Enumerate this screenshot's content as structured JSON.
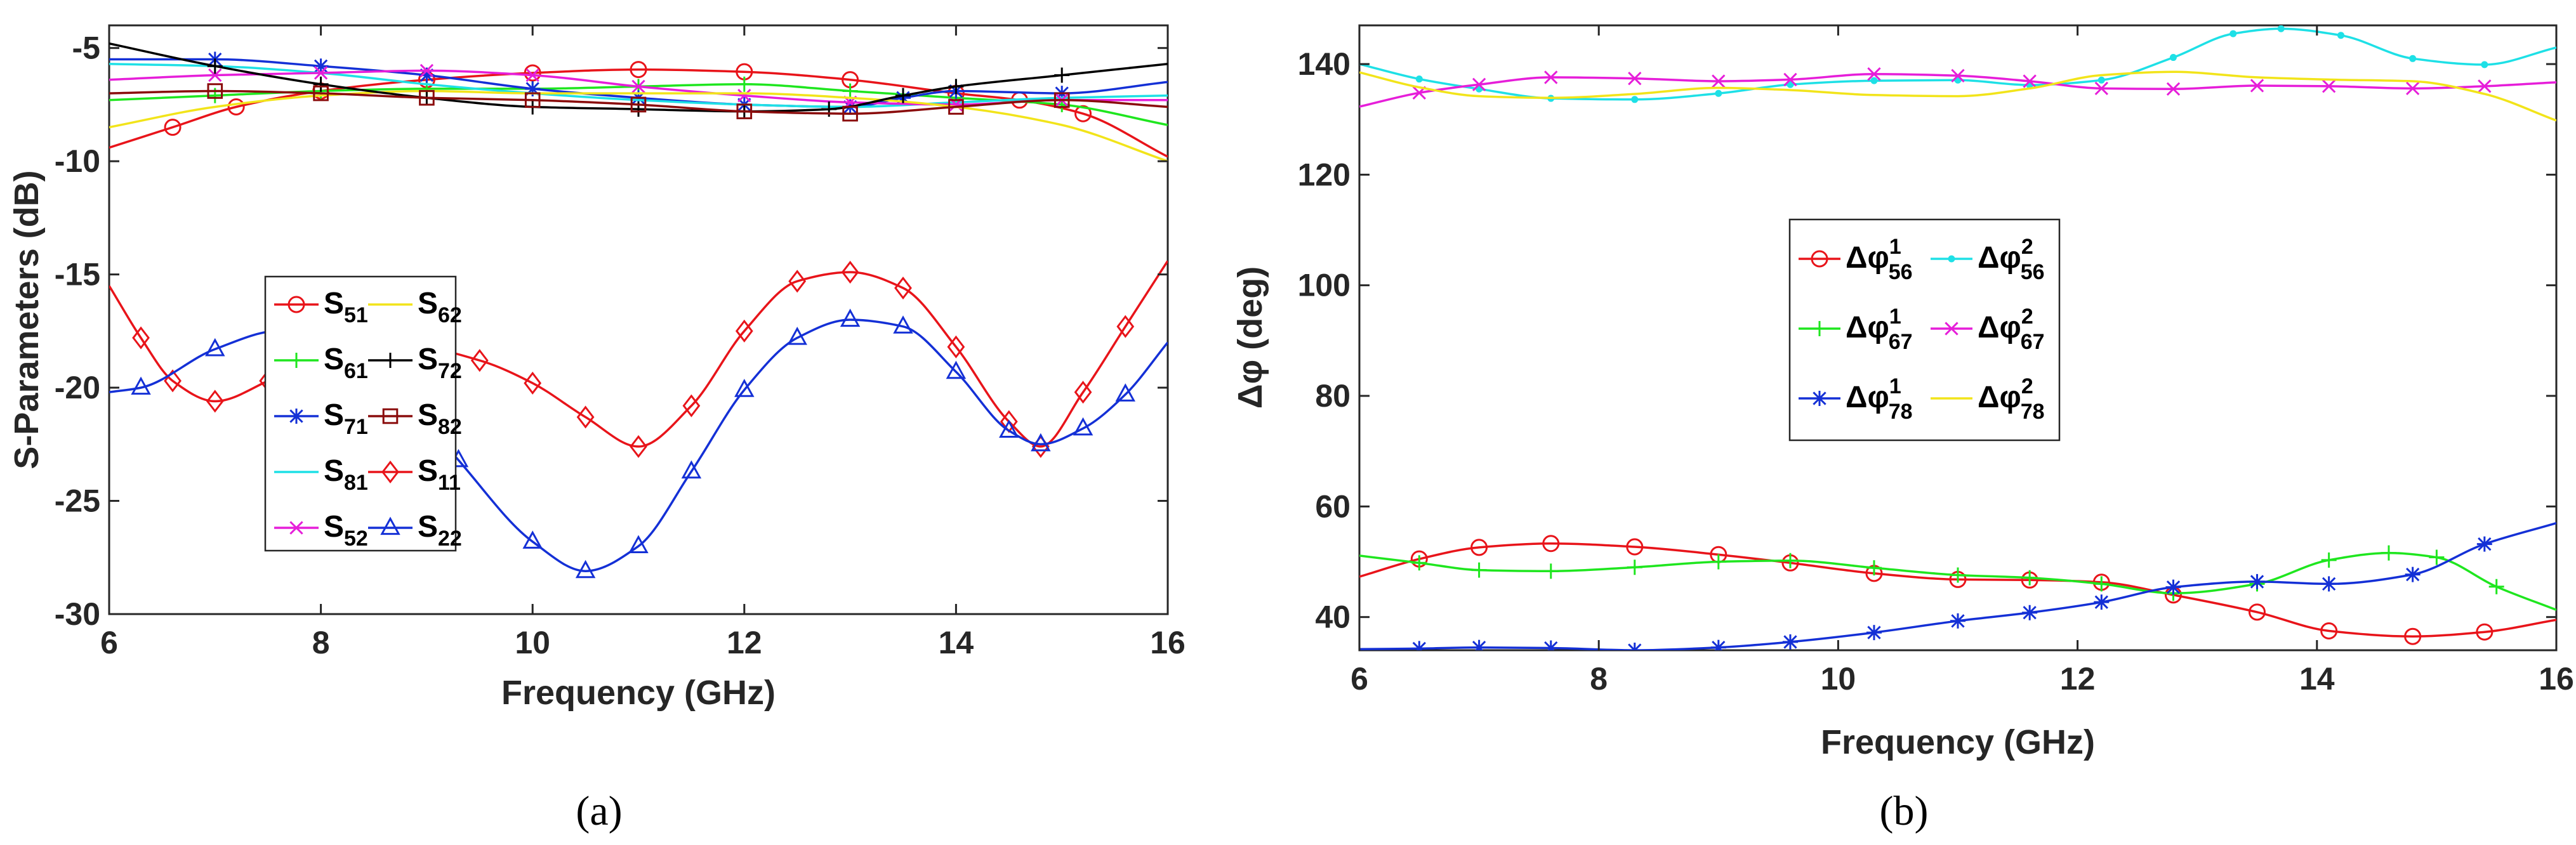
{
  "chart_data": [
    {
      "type": "line",
      "panel": "a",
      "caption": "(a)",
      "xlabel": "Frequency (GHz)",
      "ylabel": "S-Parameters (dB)",
      "xlim": [
        6,
        16
      ],
      "ylim": [
        -30,
        -4
      ],
      "xticks": [
        6,
        8,
        10,
        12,
        14,
        16
      ],
      "yticks": [
        -30,
        -25,
        -20,
        -15,
        -10,
        -5
      ],
      "xtick_labels": [
        "6",
        "8",
        "10",
        "12",
        "14",
        "16"
      ],
      "ytick_labels": [
        "-30",
        "-25",
        "-20",
        "-15",
        "-10",
        "-5"
      ],
      "legend": {
        "position": "center-left",
        "columns": 2
      },
      "series": [
        {
          "name": "S51",
          "base": "S",
          "sub": "51",
          "color": "#e8141a",
          "marker": "circle",
          "x": [
            6,
            6.6,
            7.2,
            8,
            9,
            10,
            11,
            12,
            13,
            14,
            14.6,
            15.2,
            16
          ],
          "y": [
            -9.4,
            -8.5,
            -7.6,
            -6.9,
            -6.4,
            -6.1,
            -5.95,
            -6.05,
            -6.4,
            -7.0,
            -7.3,
            -7.9,
            -9.8
          ]
        },
        {
          "name": "S61",
          "base": "S",
          "sub": "61",
          "color": "#1fe61f",
          "marker": "plus",
          "x": [
            6,
            7,
            8,
            9,
            10,
            11,
            12,
            13,
            14,
            15,
            16
          ],
          "y": [
            -7.3,
            -7.1,
            -6.9,
            -6.8,
            -6.8,
            -6.7,
            -6.6,
            -6.9,
            -7.2,
            -7.5,
            -8.4
          ]
        },
        {
          "name": "S71",
          "base": "S",
          "sub": "71",
          "color": "#1430d6",
          "marker": "asterisk",
          "x": [
            6,
            7,
            8,
            9,
            10,
            11,
            12,
            13,
            13.5,
            14,
            15,
            16
          ],
          "y": [
            -5.5,
            -5.5,
            -5.8,
            -6.2,
            -6.8,
            -7.2,
            -7.5,
            -7.6,
            -7.2,
            -6.9,
            -7.0,
            -6.5
          ]
        },
        {
          "name": "S81",
          "base": "S",
          "sub": "81",
          "color": "#1ee0e6",
          "marker": "none",
          "x": [
            6,
            7,
            8,
            9,
            10,
            11,
            12,
            13,
            14,
            15,
            16
          ],
          "y": [
            -5.7,
            -5.8,
            -6.1,
            -6.6,
            -7.0,
            -7.3,
            -7.5,
            -7.6,
            -7.4,
            -7.2,
            -7.1
          ]
        },
        {
          "name": "S52",
          "base": "S",
          "sub": "52",
          "color": "#e61ed9",
          "marker": "x",
          "x": [
            6,
            7,
            8,
            9,
            10,
            11,
            12,
            13,
            14,
            15,
            16
          ],
          "y": [
            -6.4,
            -6.2,
            -6.1,
            -6.0,
            -6.2,
            -6.7,
            -7.1,
            -7.4,
            -7.5,
            -7.3,
            -7.3
          ]
        },
        {
          "name": "S62",
          "base": "S",
          "sub": "62",
          "color": "#f2e41a",
          "marker": "none",
          "x": [
            6,
            7,
            8,
            9,
            10,
            11,
            12,
            13,
            14,
            15,
            16
          ],
          "y": [
            -8.5,
            -7.6,
            -7.1,
            -6.9,
            -7.0,
            -7.0,
            -7.0,
            -7.2,
            -7.6,
            -8.4,
            -10.0
          ]
        },
        {
          "name": "S72",
          "base": "S",
          "sub": "72",
          "color": "#000000",
          "marker": "plus",
          "x": [
            6,
            7,
            8,
            9,
            10,
            11,
            12,
            12.8,
            13.5,
            14,
            15,
            16
          ],
          "y": [
            -4.8,
            -5.8,
            -6.6,
            -7.2,
            -7.6,
            -7.7,
            -7.8,
            -7.7,
            -7.1,
            -6.7,
            -6.2,
            -5.7
          ]
        },
        {
          "name": "S82",
          "base": "S",
          "sub": "82",
          "color": "#8a0c0c",
          "marker": "square",
          "x": [
            6,
            7,
            8,
            9,
            10,
            11,
            12,
            13,
            14,
            15,
            16
          ],
          "y": [
            -7.0,
            -6.9,
            -7.0,
            -7.2,
            -7.3,
            -7.5,
            -7.8,
            -7.9,
            -7.6,
            -7.3,
            -7.6
          ]
        },
        {
          "name": "S11",
          "base": "S",
          "sub": "11",
          "color": "#e8141a",
          "marker": "diamond",
          "x": [
            6,
            6.3,
            6.6,
            7,
            7.5,
            8,
            9,
            9.5,
            10,
            10.5,
            11,
            11.5,
            12,
            12.5,
            13,
            13.5,
            14,
            14.5,
            14.8,
            15.2,
            15.6,
            16
          ],
          "y": [
            -15.5,
            -17.8,
            -19.7,
            -20.6,
            -19.7,
            -18.4,
            -18.3,
            -18.8,
            -19.8,
            -21.3,
            -22.6,
            -20.8,
            -17.5,
            -15.3,
            -14.9,
            -15.6,
            -18.2,
            -21.5,
            -22.6,
            -20.2,
            -17.3,
            -14.4
          ]
        },
        {
          "name": "S22",
          "base": "S",
          "sub": "22",
          "color": "#1430d6",
          "marker": "triangle",
          "x": [
            6,
            6.3,
            7,
            7.6,
            8,
            8.6,
            9.3,
            10,
            10.5,
            11,
            11.5,
            12,
            12.5,
            13,
            13.5,
            14,
            14.5,
            14.8,
            15.2,
            15.6,
            16
          ],
          "y": [
            -20.2,
            -20.0,
            -18.3,
            -17.5,
            -17.6,
            -19.3,
            -23.2,
            -26.8,
            -28.1,
            -27.0,
            -23.7,
            -20.1,
            -17.8,
            -17.0,
            -17.3,
            -19.3,
            -21.9,
            -22.5,
            -21.8,
            -20.3,
            -18.0
          ]
        }
      ]
    },
    {
      "type": "line",
      "panel": "b",
      "caption": "(b)",
      "xlabel": "Frequency (GHz)",
      "ylabel": "Δφ (deg)",
      "xlim": [
        6,
        16
      ],
      "ylim": [
        34,
        147
      ],
      "xticks": [
        6,
        8,
        10,
        12,
        14,
        16
      ],
      "yticks": [
        40,
        60,
        80,
        100,
        120,
        140
      ],
      "xtick_labels": [
        "6",
        "8",
        "10",
        "12",
        "14",
        "16"
      ],
      "ytick_labels": [
        "40",
        "60",
        "80",
        "100",
        "120",
        "140"
      ],
      "legend": {
        "position": "center",
        "columns": 2
      },
      "series": [
        {
          "name": "Δφ¹56",
          "base": "Δφ",
          "sup": "1",
          "sub": "56",
          "color": "#e8141a",
          "marker": "circle",
          "x": [
            6,
            6.5,
            7,
            7.6,
            8.3,
            9,
            9.6,
            10.3,
            11,
            11.6,
            12.2,
            12.8,
            13.5,
            14.1,
            14.8,
            15.4,
            16
          ],
          "y": [
            47.3,
            50.5,
            52.6,
            53.3,
            52.7,
            51.3,
            49.8,
            47.9,
            46.8,
            46.7,
            46.3,
            44.0,
            40.9,
            37.5,
            36.5,
            37.3,
            39.5
          ]
        },
        {
          "name": "Δφ²56",
          "base": "Δφ",
          "sup": "2",
          "sub": "56",
          "color": "#1ee0e6",
          "marker": "dot",
          "x": [
            6,
            6.5,
            7,
            7.6,
            8.3,
            9,
            9.6,
            10.3,
            11,
            11.6,
            12.2,
            12.8,
            13.3,
            13.7,
            14.2,
            14.8,
            15.4,
            16
          ],
          "y": [
            140.0,
            137.3,
            135.5,
            133.8,
            133.6,
            134.7,
            136.3,
            137.0,
            137.1,
            136.2,
            137.1,
            141.2,
            145.5,
            146.4,
            145.2,
            141.0,
            139.9,
            143.0
          ]
        },
        {
          "name": "Δφ¹67",
          "base": "Δφ",
          "sup": "1",
          "sub": "67",
          "color": "#1fe61f",
          "marker": "plus",
          "x": [
            6,
            6.5,
            7,
            7.6,
            8.3,
            9,
            9.6,
            10.3,
            11,
            11.6,
            12.2,
            12.8,
            13.5,
            14.1,
            14.6,
            15,
            15.5,
            16
          ],
          "y": [
            51.1,
            49.8,
            48.5,
            48.3,
            49.0,
            50.0,
            50.2,
            48.9,
            47.6,
            47.1,
            46.0,
            44.3,
            46.0,
            50.3,
            51.6,
            50.8,
            45.5,
            41.3
          ]
        },
        {
          "name": "Δφ²67",
          "base": "Δφ",
          "sup": "2",
          "sub": "67",
          "color": "#e61ed9",
          "marker": "x",
          "x": [
            6,
            6.5,
            7,
            7.6,
            8.3,
            9,
            9.6,
            10.3,
            11,
            11.6,
            12.2,
            12.8,
            13.5,
            14.1,
            14.8,
            15.4,
            16
          ],
          "y": [
            132.3,
            134.8,
            136.3,
            137.6,
            137.4,
            136.9,
            137.2,
            138.2,
            137.9,
            136.9,
            135.6,
            135.5,
            136.1,
            136.0,
            135.6,
            136.0,
            136.7
          ]
        },
        {
          "name": "Δφ¹78",
          "base": "Δφ",
          "sup": "1",
          "sub": "78",
          "color": "#1430d6",
          "marker": "asterisk",
          "x": [
            6,
            6.5,
            7,
            7.6,
            8.3,
            9,
            9.6,
            10.3,
            11,
            11.6,
            12.2,
            12.8,
            13.5,
            14.1,
            14.8,
            15.4,
            16
          ],
          "y": [
            34.2,
            34.3,
            34.5,
            34.4,
            34.0,
            34.5,
            35.5,
            37.2,
            39.3,
            40.8,
            42.7,
            45.4,
            46.4,
            46.0,
            47.7,
            53.2,
            57.0
          ]
        },
        {
          "name": "Δφ²78",
          "base": "Δφ",
          "sup": "2",
          "sub": "78",
          "color": "#f2e41a",
          "marker": "none",
          "x": [
            6,
            6.5,
            7,
            7.6,
            8.3,
            9,
            9.6,
            10.3,
            11,
            11.6,
            12.2,
            12.8,
            13.5,
            14.1,
            14.8,
            15.4,
            16
          ],
          "y": [
            138.5,
            135.8,
            134.2,
            133.9,
            134.6,
            135.7,
            135.3,
            134.4,
            134.2,
            135.6,
            138.0,
            138.6,
            137.6,
            137.2,
            136.9,
            134.6,
            129.8
          ]
        }
      ]
    }
  ]
}
